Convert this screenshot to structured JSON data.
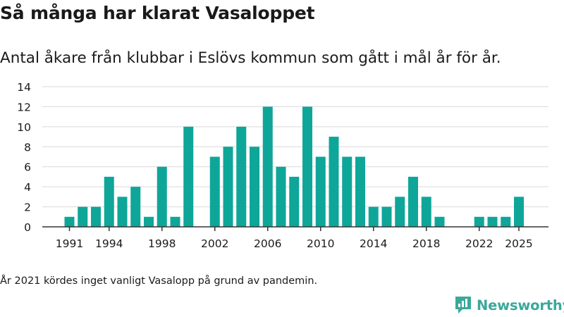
{
  "title": "Så många har klarat Vasaloppet",
  "subtitle": "Antal åkare från klubbar i Eslövs kommun som gått i mål år för år.",
  "footnote": "År 2021 kördes inget vanligt Vasalopp på grund av pandemin.",
  "brand": "Newsworthy",
  "colors": {
    "bar": "#0ea699",
    "grid": "#d9d9d9",
    "axis": "#333333",
    "brand": "#3aa89a"
  },
  "chart_data": {
    "type": "bar",
    "categories": [
      1991,
      1992,
      1993,
      1994,
      1995,
      1996,
      1997,
      1998,
      1999,
      2000,
      2001,
      2002,
      2003,
      2004,
      2005,
      2006,
      2007,
      2008,
      2009,
      2010,
      2011,
      2012,
      2013,
      2014,
      2015,
      2016,
      2017,
      2018,
      2019,
      2020,
      2021,
      2022,
      2023,
      2024,
      2025
    ],
    "values": [
      1,
      2,
      2,
      5,
      3,
      4,
      1,
      6,
      1,
      10,
      null,
      7,
      8,
      10,
      8,
      12,
      6,
      5,
      12,
      7,
      9,
      7,
      7,
      2,
      2,
      3,
      5,
      3,
      1,
      null,
      null,
      1,
      1,
      1,
      3
    ],
    "x_ticks": [
      "1991",
      "1994",
      "1998",
      "2002",
      "2006",
      "2010",
      "2014",
      "2018",
      "2022",
      "2025"
    ],
    "y_ticks": [
      "0",
      "2",
      "4",
      "6",
      "8",
      "10",
      "12",
      "14"
    ],
    "ylim": [
      0,
      14
    ],
    "xlabel": "",
    "ylabel": ""
  }
}
